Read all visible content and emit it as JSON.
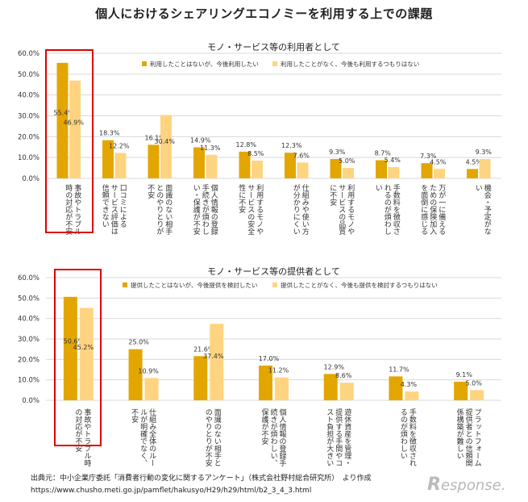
{
  "page_title": "個人におけるシェアリングエコノミーを利用する上での課題",
  "source": {
    "line1": "出典元：中小企業庁委託「消費者行動の変化に関するアンケート」（株式会社野村総合研究所）　より作成",
    "line2": "https://www.chusho.meti.go.jp/pamflet/hakusyo/H29/h29/html/b2_3_4_3.html"
  },
  "logo_text": "esponse.",
  "colors": {
    "dark": "#E3A600",
    "light": "#FFD480",
    "highlight": "#E00000",
    "grid": "#D9D9D9"
  },
  "chart_data": [
    {
      "type": "bar",
      "title": "モノ・サービス等の利用者として",
      "ylim": [
        0,
        60
      ],
      "yticks": [
        "0.0%",
        "10.0%",
        "20.0%",
        "30.0%",
        "40.0%",
        "50.0%",
        "60.0%"
      ],
      "categories": [
        [
          "事故やトラブル",
          "時の対応が不安"
        ],
        [
          "口コミによる",
          "サービス評価は",
          "信頼できない"
        ],
        [
          "面識のない相手",
          "とのやりとりが",
          "不安"
        ],
        [
          "個人情報の登録",
          "手続きが煩わし",
          "い・保護が不安"
        ],
        [
          "利用するモノや",
          "サービスの安全",
          "性に不安"
        ],
        [
          "仕組みや使い方",
          "が分かりにくい"
        ],
        [
          "利用するモノや",
          "サービスの品質",
          "に不安"
        ],
        [
          "手数料を徴収さ",
          "れるのが煩わし",
          "い"
        ],
        [
          "万が一に備える",
          "ための保険加入",
          "を面倒に感じる"
        ],
        [
          "機会・予定がな",
          "い"
        ]
      ],
      "series": [
        {
          "name": "利用したことはないが、今後利用したい",
          "values": [
            55.4,
            18.3,
            16.1,
            14.9,
            12.8,
            12.3,
            9.3,
            8.7,
            7.3,
            4.5
          ],
          "labels": [
            "55.4%",
            "18.3%",
            "16.1%",
            "14.9%",
            "12.8%",
            "12.3%",
            "9.3%",
            "8.7%",
            "7.3%",
            "4.5%"
          ]
        },
        {
          "name": "利用したことがなく、今後も利用するつもりはない",
          "values": [
            46.9,
            12.2,
            30.4,
            11.3,
            8.5,
            7.6,
            5.0,
            5.4,
            4.5,
            9.3
          ],
          "labels": [
            "46.9%",
            "12.2%",
            "30.4%",
            "11.3%",
            "8.5%",
            "7.6%",
            "5.0%",
            "5.4%",
            "4.5%",
            "9.3%"
          ]
        }
      ],
      "highlight_category": 0
    },
    {
      "type": "bar",
      "title": "モノ・サービス等の提供者として",
      "ylim": [
        0,
        60
      ],
      "yticks": [
        "0.0%",
        "10.0%",
        "20.0%",
        "30.0%",
        "40.0%",
        "50.0%",
        "60.0%"
      ],
      "categories": [
        [
          "事故やトラブル時",
          "の対応が不安"
        ],
        [
          "仕組み全体のルー",
          "ルが明確でなく、",
          "不安"
        ],
        [
          "面識のない相手と",
          "のやりとりが不安"
        ],
        [
          "個人情報の登録手",
          "続きが煩わしい、",
          "保護が不安"
        ],
        [
          "遊休資産を管理・",
          "提供する手間やコ",
          "スト負担が大きい"
        ],
        [
          "手数料を徴収され",
          "るのが煩わしい"
        ],
        [
          "プラットフォーム",
          "提供者との信頼関",
          "係構築が難しい"
        ]
      ],
      "series": [
        {
          "name": "提供したことはないが、今後提供を検討したい",
          "values": [
            50.6,
            25.0,
            21.6,
            17.0,
            12.9,
            11.7,
            9.1
          ],
          "labels": [
            "50.6%",
            "25.0%",
            "21.6%",
            "17.0%",
            "12.9%",
            "11.7%",
            "9.1%"
          ]
        },
        {
          "name": "提供したことがなく、今後も提供を検討するつもりはない",
          "values": [
            45.2,
            10.9,
            37.4,
            11.2,
            8.6,
            4.3,
            5.0
          ],
          "labels": [
            "45.2%",
            "10.9%",
            "37.4%",
            "11.2%",
            "8.6%",
            "4.3%",
            "5.0%"
          ]
        }
      ],
      "highlight_category": 0
    }
  ]
}
